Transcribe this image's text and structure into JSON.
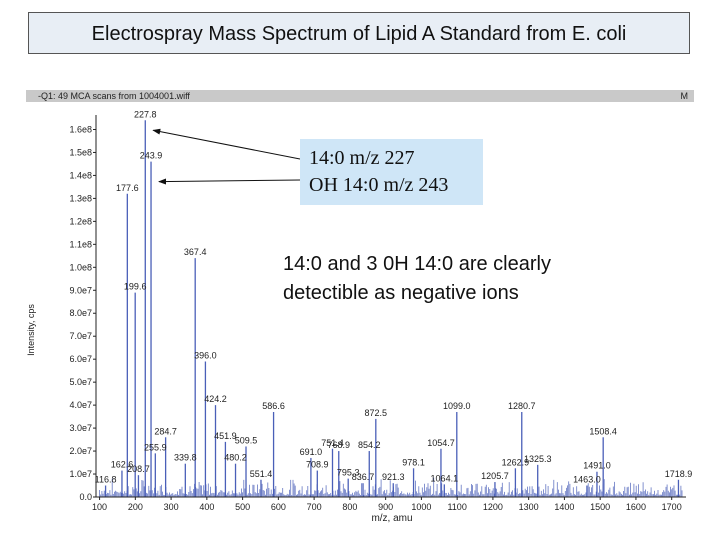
{
  "slide": {
    "title": "Electrospray Mass Spectrum of Lipid A Standard from E. coli",
    "scan_header_left": "-Q1: 49 MCA scans from 1004001.wiff",
    "scan_header_right": "M",
    "callout_line1": "14:0 m/z 227",
    "callout_line2": "OH 14:0 m/z 243",
    "note_line1": "14:0 and 3 0H 14:0 are clearly",
    "note_line2": "detectible as negative ions"
  },
  "chart_data": {
    "type": "bar",
    "title": "",
    "xlabel": "m/z, amu",
    "ylabel": "Intensity, cps",
    "xlim": [
      90,
      1740
    ],
    "ylim": [
      0,
      165000000.0
    ],
    "x_ticks": [
      100,
      200,
      300,
      400,
      500,
      600,
      700,
      800,
      900,
      1000,
      1100,
      1200,
      1300,
      1400,
      1500,
      1600,
      1700
    ],
    "y_ticks": [
      {
        "value": 0,
        "label": "0.0"
      },
      {
        "value": 10000000.0,
        "label": "1.0e7"
      },
      {
        "value": 20000000.0,
        "label": "2.0e7"
      },
      {
        "value": 30000000.0,
        "label": "3.0e7"
      },
      {
        "value": 40000000.0,
        "label": "4.0e7"
      },
      {
        "value": 50000000.0,
        "label": "5.0e7"
      },
      {
        "value": 60000000.0,
        "label": "6.0e7"
      },
      {
        "value": 70000000.0,
        "label": "7.0e7"
      },
      {
        "value": 80000000.0,
        "label": "8.0e7"
      },
      {
        "value": 90000000.0,
        "label": "9.0e7"
      },
      {
        "value": 100000000.0,
        "label": "1.0e8"
      },
      {
        "value": 110000000.0,
        "label": "1.1e8"
      },
      {
        "value": 120000000.0,
        "label": "1.2e8"
      },
      {
        "value": 130000000.0,
        "label": "1.3e8"
      },
      {
        "value": 140000000.0,
        "label": "1.4e8"
      },
      {
        "value": 150000000.0,
        "label": "1.5e8"
      },
      {
        "value": 160000000.0,
        "label": "1.6e8"
      }
    ],
    "labeled_peaks": [
      {
        "label": "227.8",
        "mz": 227.8,
        "intensity": 164000000.0
      },
      {
        "label": "243.9",
        "mz": 243.9,
        "intensity": 146000000.0
      },
      {
        "label": "177.6",
        "mz": 177.6,
        "intensity": 132000000.0
      },
      {
        "label": "367.4",
        "mz": 367.4,
        "intensity": 104000000.0
      },
      {
        "label": "199.6",
        "mz": 199.6,
        "intensity": 89000000.0
      },
      {
        "label": "396.0",
        "mz": 396.0,
        "intensity": 59000000.0
      },
      {
        "label": "424.2",
        "mz": 424.2,
        "intensity": 40000000.0
      },
      {
        "label": "586.6",
        "mz": 586.6,
        "intensity": 37000000.0
      },
      {
        "label": "1099.0",
        "mz": 1099.0,
        "intensity": 37000000.0
      },
      {
        "label": "1280.7",
        "mz": 1280.7,
        "intensity": 37000000.0
      },
      {
        "label": "872.5",
        "mz": 872.5,
        "intensity": 34000000.0
      },
      {
        "label": "1508.4",
        "mz": 1508.4,
        "intensity": 26000000.0
      },
      {
        "label": "284.7",
        "mz": 284.7,
        "intensity": 26000000.0
      },
      {
        "label": "451.9",
        "mz": 451.9,
        "intensity": 24000000.0
      },
      {
        "label": "509.5",
        "mz": 509.5,
        "intensity": 22000000.0
      },
      {
        "label": "751.4",
        "mz": 751.4,
        "intensity": 21000000.0
      },
      {
        "label": "768.9",
        "mz": 768.9,
        "intensity": 20000000.0
      },
      {
        "label": "854.2",
        "mz": 854.2,
        "intensity": 20000000.0
      },
      {
        "label": "1054.7",
        "mz": 1054.7,
        "intensity": 21000000.0
      },
      {
        "label": "255.9",
        "mz": 255.9,
        "intensity": 19000000.0
      },
      {
        "label": "691.0",
        "mz": 691.0,
        "intensity": 17000000.0
      },
      {
        "label": "339.8",
        "mz": 339.8,
        "intensity": 14500000.0
      },
      {
        "label": "480.2",
        "mz": 480.2,
        "intensity": 14500000.0
      },
      {
        "label": "1325.3",
        "mz": 1325.3,
        "intensity": 14000000.0
      },
      {
        "label": "162.6",
        "mz": 162.6,
        "intensity": 11500000.0
      },
      {
        "label": "708.9",
        "mz": 708.9,
        "intensity": 11500000.0
      },
      {
        "label": "978.1",
        "mz": 978.1,
        "intensity": 12500000.0
      },
      {
        "label": "1262.9",
        "mz": 1262.9,
        "intensity": 12500000.0
      },
      {
        "label": "1491.0",
        "mz": 1491.0,
        "intensity": 11000000.0
      },
      {
        "label": "208.7",
        "mz": 208.7,
        "intensity": 9500000.0
      },
      {
        "label": "551.4",
        "mz": 551.4,
        "intensity": 7500000.0
      },
      {
        "label": "795.3",
        "mz": 795.3,
        "intensity": 8000000.0
      },
      {
        "label": "1718.9",
        "mz": 1718.9,
        "intensity": 7500000.0
      },
      {
        "label": "116.8",
        "mz": 116.8,
        "intensity": 5000000.0
      },
      {
        "label": "836.7",
        "mz": 836.7,
        "intensity": 6000000.0
      },
      {
        "label": "921.3",
        "mz": 921.3,
        "intensity": 6000000.0
      },
      {
        "label": "1064.1",
        "mz": 1064.1,
        "intensity": 5500000.0
      },
      {
        "label": "1205.7",
        "mz": 1205.7,
        "intensity": 6500000.0
      },
      {
        "label": "1463.0",
        "mz": 1463.0,
        "intensity": 5000000.0
      }
    ],
    "callout_targets": [
      227.8,
      243.9
    ],
    "colors": {
      "spectrum": "#4a5fb8",
      "axis": "#222222",
      "callout": "#cfe6f7"
    }
  }
}
